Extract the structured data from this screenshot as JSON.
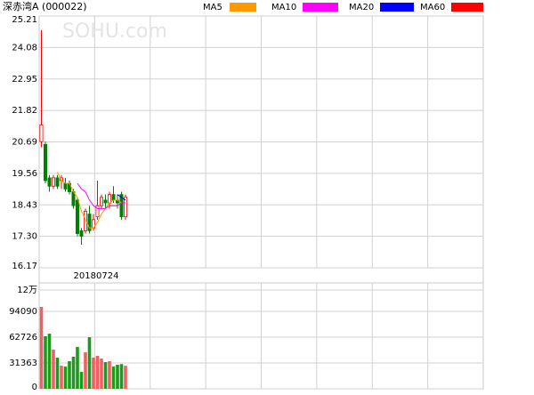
{
  "chart_data": [
    {
      "type": "candlestick",
      "title": "深赤湾A (000022)",
      "watermark": "SOHU.com",
      "date_label": "20180724",
      "up_color": "#ff0000",
      "down_color": "#008000",
      "open": [
        20.7,
        20.6,
        19.4,
        19.1,
        19.4,
        19.3,
        19.2,
        19.2,
        18.9,
        18.6,
        17.5,
        17.5,
        18.1,
        17.6,
        18.0,
        18.4,
        18.6,
        18.5,
        18.8,
        18.6,
        18.8,
        18.0
      ],
      "high": [
        24.7,
        20.7,
        19.5,
        19.5,
        19.5,
        19.5,
        19.4,
        19.3,
        19.0,
        18.7,
        17.6,
        18.3,
        18.4,
        18.1,
        19.3,
        18.8,
        18.8,
        18.9,
        19.1,
        18.8,
        18.9,
        18.8
      ],
      "low": [
        20.5,
        19.2,
        18.9,
        19.0,
        19.0,
        19.0,
        18.9,
        18.8,
        18.3,
        17.3,
        17.0,
        17.4,
        17.4,
        17.5,
        17.9,
        18.3,
        18.3,
        18.3,
        18.5,
        18.3,
        17.9,
        17.9
      ],
      "close": [
        21.3,
        19.3,
        19.1,
        19.4,
        19.1,
        19.4,
        19.0,
        18.9,
        18.4,
        17.4,
        17.3,
        18.2,
        17.5,
        17.9,
        18.4,
        18.7,
        18.5,
        18.8,
        18.6,
        18.5,
        18.0,
        18.7
      ],
      "series": [
        {
          "name": "MA5",
          "color": "#ff9900",
          "values": [
            null,
            null,
            null,
            null,
            19.6,
            19.3,
            19.2,
            19.2,
            18.9,
            18.7,
            18.2,
            17.9,
            17.6,
            17.6,
            17.8,
            18.1,
            18.3,
            18.5,
            18.6,
            18.6,
            18.5,
            18.5
          ]
        },
        {
          "name": "MA10",
          "color": "#ff00ff",
          "values": [
            null,
            null,
            null,
            null,
            null,
            null,
            null,
            null,
            null,
            19.2,
            19.0,
            18.9,
            18.6,
            18.4,
            18.3,
            18.3,
            18.3,
            18.4,
            18.4,
            18.4,
            18.5,
            18.5
          ]
        },
        {
          "name": "MA20",
          "color": "#0000ff",
          "values": [
            null,
            null,
            null,
            null,
            null,
            null,
            null,
            null,
            null,
            null,
            null,
            null,
            null,
            null,
            null,
            null,
            null,
            null,
            null,
            18.8,
            18.7,
            18.6
          ]
        },
        {
          "name": "MA60",
          "color": "#ff0000",
          "values": [
            null,
            null,
            null,
            null,
            null,
            null,
            null,
            null,
            null,
            null,
            null,
            null,
            null,
            null,
            null,
            null,
            null,
            null,
            null,
            null,
            null,
            null
          ]
        }
      ],
      "ylim": [
        16.17,
        25.21
      ],
      "yticks": [
        25.21,
        24.08,
        22.95,
        21.82,
        20.69,
        19.56,
        18.43,
        {
          "value": 17.3,
          "label": "17.30"
        },
        16.17
      ]
    },
    {
      "type": "bar",
      "values": [
        99500,
        63800,
        67000,
        47600,
        37800,
        28000,
        27000,
        33500,
        39000,
        50800,
        20500,
        44300,
        62700,
        37800,
        40000,
        36700,
        32400,
        33500,
        27000,
        29200,
        30000,
        28000
      ],
      "ylim": [
        0,
        125452
      ],
      "yticks": [
        0,
        31363,
        62726,
        94090,
        {
          "value": 120000,
          "label": "12万"
        }
      ]
    }
  ]
}
